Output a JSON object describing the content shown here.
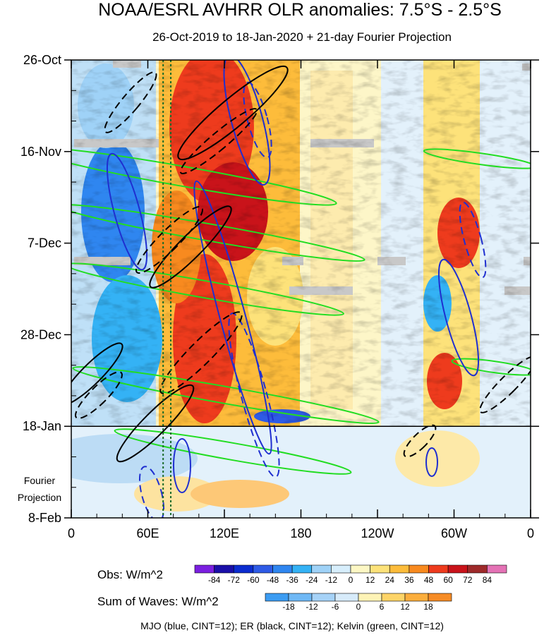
{
  "title": "NOAA/ESRL AVHRR OLR anomalies: 7.5°S - 2.5°S",
  "subtitle": "26-Oct-2019 to 18-Jan-2020 + 21-day Fourier Projection",
  "footer": "MJO (blue, CINT=12); ER (black, CINT=12); Kelvin (green, CINT=12)",
  "chart_data": {
    "type": "heatmap",
    "description_axes": "Hovmöller diagram: longitude on x-axis, time (top to bottom) on y-axis",
    "xlabel": "",
    "ylabel": "",
    "x_ticks": [
      {
        "label": "0",
        "lon": 0
      },
      {
        "label": "60E",
        "lon": 60
      },
      {
        "label": "120E",
        "lon": 120
      },
      {
        "label": "180",
        "lon": 180
      },
      {
        "label": "120W",
        "lon": 240
      },
      {
        "label": "60W",
        "lon": 300
      },
      {
        "label": "0",
        "lon": 360
      }
    ],
    "xlim": [
      0,
      360
    ],
    "y_ticks": [
      {
        "label": "26-Oct",
        "day": 0
      },
      {
        "label": "16-Nov",
        "day": 21
      },
      {
        "label": "7-Dec",
        "day": 42
      },
      {
        "label": "28-Dec",
        "day": 63
      },
      {
        "label": "18-Jan",
        "day": 84
      },
      {
        "label": "8-Feb",
        "day": 105
      }
    ],
    "ylim_days": [
      0,
      105
    ],
    "obs_end_day": 84,
    "projection_label": [
      "Fourier",
      "Projection"
    ],
    "reference_lines_lon": [
      72,
      78
    ],
    "obs_colorbar": {
      "label": "Obs: W/m^2",
      "ticks": [
        -84,
        -72,
        -60,
        -48,
        -36,
        -24,
        -12,
        0,
        12,
        24,
        36,
        48,
        60,
        72,
        84
      ],
      "colors": [
        "#7b1fe0",
        "#1a0fa8",
        "#0b2ccf",
        "#2e5be6",
        "#2f86f0",
        "#34b2f5",
        "#9fd2f7",
        "#d7eefc",
        "#fdf7c4",
        "#fde27a",
        "#fdbc3b",
        "#f88a1f",
        "#ee3b1d",
        "#c9131a",
        "#9e2a2a",
        "#e472b5"
      ]
    },
    "waves_colorbar": {
      "label": "Sum of Waves: W/m^2",
      "ticks": [
        -18,
        -12,
        -6,
        0,
        6,
        12,
        18
      ],
      "colors": [
        "#3c9cf2",
        "#6fb8f5",
        "#a6d2f7",
        "#d7ebfa",
        "#fdf3b6",
        "#fdd468",
        "#fbae3d",
        "#f68c26"
      ]
    },
    "wave_colors": {
      "MJO": "#1f2fd0",
      "ER": "#000000",
      "Kelvin": "#22dd22"
    }
  }
}
